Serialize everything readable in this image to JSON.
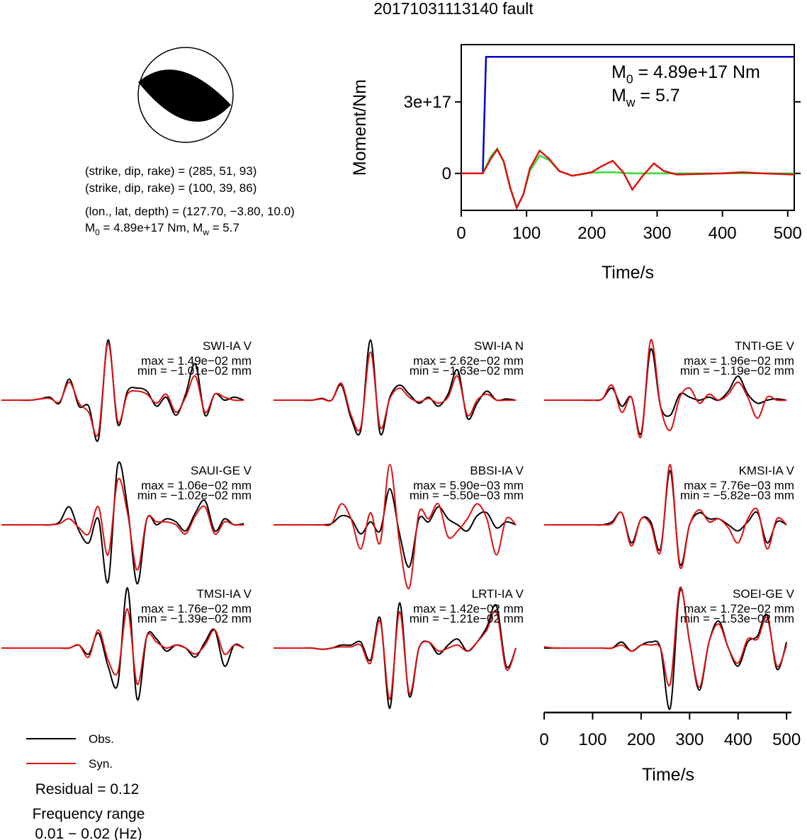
{
  "title": "20171031113140 fault",
  "source_info": [
    "(strike, dip, rake) = (285, 51, 93)",
    "(strike, dip, rake) = (100, 39, 86)",
    "(lon., lat, depth) = (127.70, −3.80, 10.0)",
    [
      "M",
      "0",
      " = 4.89e+17 Nm, M",
      "w",
      " = 5.7"
    ]
  ],
  "chart_data": [
    {
      "type": "line",
      "ylabel": "Moment/Nm",
      "xlabel": "Time/s",
      "xlim": [
        0,
        510
      ],
      "xticks": [
        0,
        100,
        200,
        300,
        400,
        500
      ],
      "ylim": [
        -1.55e+17,
        5.4e+17
      ],
      "yticks": [
        0,
        {
          "value": 3e+17,
          "label": "3e+17"
        }
      ],
      "annotations": [
        [
          "M",
          "0",
          " = 4.89e+17 Nm"
        ],
        [
          "M",
          "w",
          " = 5.7"
        ]
      ],
      "series": [
        {
          "color": "#0000cc",
          "x": [
            0,
            33,
            38,
            510
          ],
          "values": [
            0,
            0,
            4.89e+17,
            4.89e+17
          ]
        },
        {
          "color": "#33dd33",
          "x": [
            0,
            33,
            45,
            55,
            65,
            75,
            85,
            95,
            105,
            120,
            135,
            150,
            170,
            200,
            230,
            260,
            300,
            350,
            510
          ],
          "values": [
            0,
            0,
            7e+16,
            1.04e+17,
            5e+16,
            -6e+16,
            -1.42e+17,
            -9e+16,
            1e+16,
            7.5e+16,
            5.5e+16,
            1e+16,
            -1e+16,
            3000000000000000.0,
            5000000000000000.0,
            0,
            0,
            0,
            0
          ]
        },
        {
          "color": "#dd1111",
          "x": [
            0,
            33,
            45,
            55,
            65,
            75,
            85,
            95,
            105,
            120,
            135,
            150,
            170,
            200,
            215,
            232,
            248,
            262,
            278,
            295,
            310,
            330,
            360,
            400,
            430,
            460,
            510
          ],
          "values": [
            0,
            0,
            6e+16,
            1e+17,
            5e+16,
            -6e+16,
            -1.45e+17,
            -9e+16,
            2e+16,
            9.5e+16,
            6e+16,
            1e+16,
            -1e+16,
            5000000000000000.0,
            3e+16,
            5.3e+16,
            5000000000000000.0,
            -6.8e+16,
            -1e+16,
            4.2e+16,
            1e+16,
            -5000000000000000.0,
            -3000000000000000.0,
            0,
            5000000000000000.0,
            0,
            -5000000000000000.0
          ]
        }
      ]
    },
    {
      "type": "waveforms",
      "xlabel": "Time/s",
      "xlim": [
        0,
        510
      ],
      "xticks": [
        0,
        100,
        200,
        300,
        400,
        500
      ],
      "legend": [
        {
          "name": "Obs.",
          "color": "#000000"
        },
        {
          "name": "Syn.",
          "color": "#dd1111"
        }
      ],
      "x": [
        0,
        20,
        40,
        60,
        80,
        100,
        120,
        140,
        160,
        180,
        200,
        220,
        240,
        260,
        280,
        300,
        320,
        340,
        360,
        380,
        400,
        420,
        440,
        460,
        480,
        500
      ],
      "panels": [
        {
          "title": "SWI-IA V",
          "max_label": "max = 1.49e−02 mm",
          "min_label": "min = −1.01e−02 mm",
          "series": [
            {
              "values": [
                0,
                0,
                0,
                0,
                0.02,
                0.05,
                -0.05,
                0.35,
                -0.1,
                -0.1,
                -0.65,
                1.0,
                -0.4,
                0.15,
                0.2,
                0.15,
                -0.1,
                0.05,
                -0.25,
                0.1,
                0.6,
                -0.25,
                0.1,
                0,
                0.05,
                0
              ]
            },
            {
              "values": [
                0,
                0,
                0,
                0,
                0.02,
                0.03,
                -0.03,
                0.3,
                -0.05,
                -0.2,
                -0.55,
                0.95,
                -0.35,
                0.1,
                0.15,
                0.1,
                -0.05,
                0.1,
                -0.2,
                0.05,
                0.4,
                -0.2,
                0.1,
                0.05,
                0,
                0
              ]
            }
          ]
        },
        {
          "title": "SWI-IA N",
          "max_label": "max = 2.62e−02 mm",
          "min_label": "min = −1.63e−02 mm",
          "series": [
            {
              "values": [
                0,
                0,
                0,
                0,
                0,
                0.03,
                0,
                0.25,
                -0.3,
                -0.5,
                1.0,
                -0.55,
                0.05,
                0.25,
                0.1,
                -0.05,
                0.05,
                -0.1,
                0.1,
                0.5,
                -0.3,
                -0.05,
                0.15,
                0,
                0.02,
                0
              ]
            },
            {
              "values": [
                0,
                0,
                0,
                0,
                0,
                0.02,
                0,
                0.28,
                -0.25,
                -0.45,
                0.8,
                -0.45,
                0.03,
                0.2,
                0.05,
                -0.03,
                0.03,
                -0.05,
                0.05,
                0.4,
                -0.25,
                0,
                0.1,
                0,
                0,
                0
              ]
            }
          ]
        },
        {
          "title": "TNTI-GE V",
          "max_label": "max = 1.96e−02 mm",
          "min_label": "min = −1.19e−02 mm",
          "series": [
            {
              "values": [
                0,
                0,
                0,
                0,
                0,
                0,
                0.02,
                0.2,
                -0.1,
                0.05,
                -0.55,
                0.85,
                -0.1,
                -0.25,
                0.1,
                0.05,
                0,
                0.05,
                0,
                0.15,
                0.4,
                0.1,
                -0.05,
                0,
                0.02,
                0
              ]
            },
            {
              "values": [
                0,
                0,
                0,
                0,
                0,
                0,
                0.02,
                0.25,
                -0.2,
                0.05,
                -0.6,
                1.0,
                -0.1,
                -0.5,
                0.05,
                0.2,
                -0.05,
                0.1,
                0,
                0.1,
                0.3,
                0.05,
                -0.3,
                0.05,
                0,
                0
              ]
            }
          ]
        },
        {
          "title": "SAUI-GE V",
          "max_label": "max = 1.06e−02 mm",
          "min_label": "min = −1.02e−02 mm",
          "series": [
            {
              "values": [
                0,
                0,
                0,
                0,
                0,
                0,
                0.05,
                0.3,
                -0.1,
                -0.3,
                0.1,
                -0.95,
                1.0,
                0.3,
                -0.98,
                0.1,
                0,
                0.1,
                0.05,
                -0.1,
                0.2,
                0.4,
                -0.1,
                0.1,
                0,
                0.02
              ]
            },
            {
              "values": [
                0,
                0,
                0,
                0,
                0,
                0,
                0.02,
                0.1,
                -0.05,
                -0.15,
                0.3,
                -0.5,
                0.75,
                0.2,
                -0.75,
                0.1,
                0.05,
                0.05,
                0,
                -0.15,
                0.15,
                0.3,
                -0.15,
                0.05,
                0,
                0
              ]
            }
          ]
        },
        {
          "title": "BBSI-IA V",
          "max_label": "max = 5.90e−03 mm",
          "min_label": "min = −5.50e−03 mm",
          "series": [
            {
              "values": [
                0,
                0,
                0,
                0,
                0,
                0,
                0.02,
                0.15,
                0.1,
                -0.15,
                0.05,
                -0.1,
                0.6,
                -0.15,
                -0.7,
                0.1,
                0.05,
                0.3,
                0.1,
                0,
                -0.1,
                0.15,
                0.2,
                -0.05,
                0.05,
                0
              ]
            },
            {
              "values": [
                0,
                0,
                0,
                0,
                0,
                0,
                0.02,
                0.35,
                0.1,
                -0.4,
                0.2,
                -0.3,
                1.0,
                -0.3,
                -1.05,
                0.2,
                0.1,
                0.35,
                -0.2,
                -0.1,
                0.1,
                0.35,
                0.1,
                -0.5,
                0.1,
                0
              ]
            }
          ]
        },
        {
          "title": "KMSI-IA V",
          "max_label": "max = 7.76e−03 mm",
          "min_label": "min = −5.82e−03 mm",
          "series": [
            {
              "values": [
                0,
                0,
                0,
                0,
                0,
                0,
                0,
                0.05,
                0.2,
                -0.3,
                0.1,
                0.05,
                -0.4,
                0.9,
                -0.65,
                0,
                0.2,
                0.1,
                0.1,
                0,
                -0.1,
                0.05,
                0.2,
                -0.3,
                0.05,
                0
              ]
            },
            {
              "values": [
                0,
                0,
                0,
                0,
                0,
                0,
                0,
                0.02,
                0.2,
                -0.35,
                0.1,
                0,
                -0.45,
                1.0,
                -0.7,
                0,
                0.25,
                0.05,
                0.1,
                -0.05,
                -0.3,
                0.1,
                0.25,
                -0.4,
                0.1,
                0
              ]
            }
          ]
        },
        {
          "title": "TMSI-IA V",
          "max_label": "max = 1.76e−02 mm",
          "min_label": "min = −1.39e−02 mm",
          "series": [
            {
              "values": [
                0,
                0,
                0,
                0,
                0,
                0,
                0,
                0,
                0.05,
                -0.1,
                0.25,
                -0.3,
                -0.6,
                1.0,
                -0.85,
                0.2,
                0.15,
                -0.05,
                0.05,
                0,
                -0.15,
                0.1,
                0.3,
                -0.3,
                0.05,
                0
              ]
            },
            {
              "values": [
                0,
                0,
                0,
                0,
                0,
                0,
                0,
                0,
                0.05,
                -0.15,
                0.3,
                -0.2,
                -0.4,
                0.65,
                -0.6,
                0.2,
                0.1,
                0,
                0.05,
                0,
                -0.1,
                0.05,
                0.3,
                -0.1,
                0.05,
                0
              ]
            }
          ]
        },
        {
          "title": "LRTI-IA V",
          "max_label": "max = 1.42e−02 mm",
          "min_label": "min = −1.21e−02 mm",
          "series": [
            {
              "values": [
                0,
                0,
                0,
                0,
                0,
                -0.02,
                0,
                0.05,
                0.05,
                0.1,
                -0.2,
                0.5,
                -1.0,
                0.75,
                -0.8,
                0,
                0.1,
                -0.1,
                0.05,
                0.15,
                -0.05,
                0.1,
                0.35,
                0.7,
                -0.3,
                0
              ]
            },
            {
              "values": [
                0,
                0,
                0,
                0,
                0,
                -0.02,
                0,
                0.02,
                0.02,
                0.05,
                -0.25,
                0.45,
                -0.85,
                0.6,
                -0.75,
                0,
                0.1,
                -0.05,
                0,
                0.05,
                -0.05,
                0.1,
                0.3,
                0.6,
                -0.35,
                0
              ]
            }
          ]
        },
        {
          "title": "SOEI-GE V",
          "max_label": "max = 1.72e−02 mm",
          "min_label": "min = −1.53e−02 mm",
          "series": [
            {
              "values": [
                0,
                0,
                0,
                0,
                0,
                0,
                0,
                0,
                0.1,
                -0.05,
                0.05,
                0.1,
                0,
                -1.0,
                0.95,
                0.1,
                -0.7,
                0.1,
                0.45,
                0,
                -0.3,
                0.1,
                0.2,
                0.55,
                -0.35,
                0.1
              ]
            },
            {
              "values": [
                0.02,
                0,
                0,
                0,
                0,
                0,
                0,
                0,
                0.05,
                -0.05,
                0.05,
                0.05,
                0,
                -0.6,
                1.0,
                0.1,
                -0.65,
                0.1,
                0.4,
                0,
                -0.25,
                0.15,
                0.15,
                0.5,
                -0.3,
                0.05
              ]
            }
          ]
        }
      ]
    }
  ],
  "residual": "Residual = 0.12",
  "frequency_range": [
    "Frequency range",
    "0.01 − 0.02 (Hz)"
  ]
}
